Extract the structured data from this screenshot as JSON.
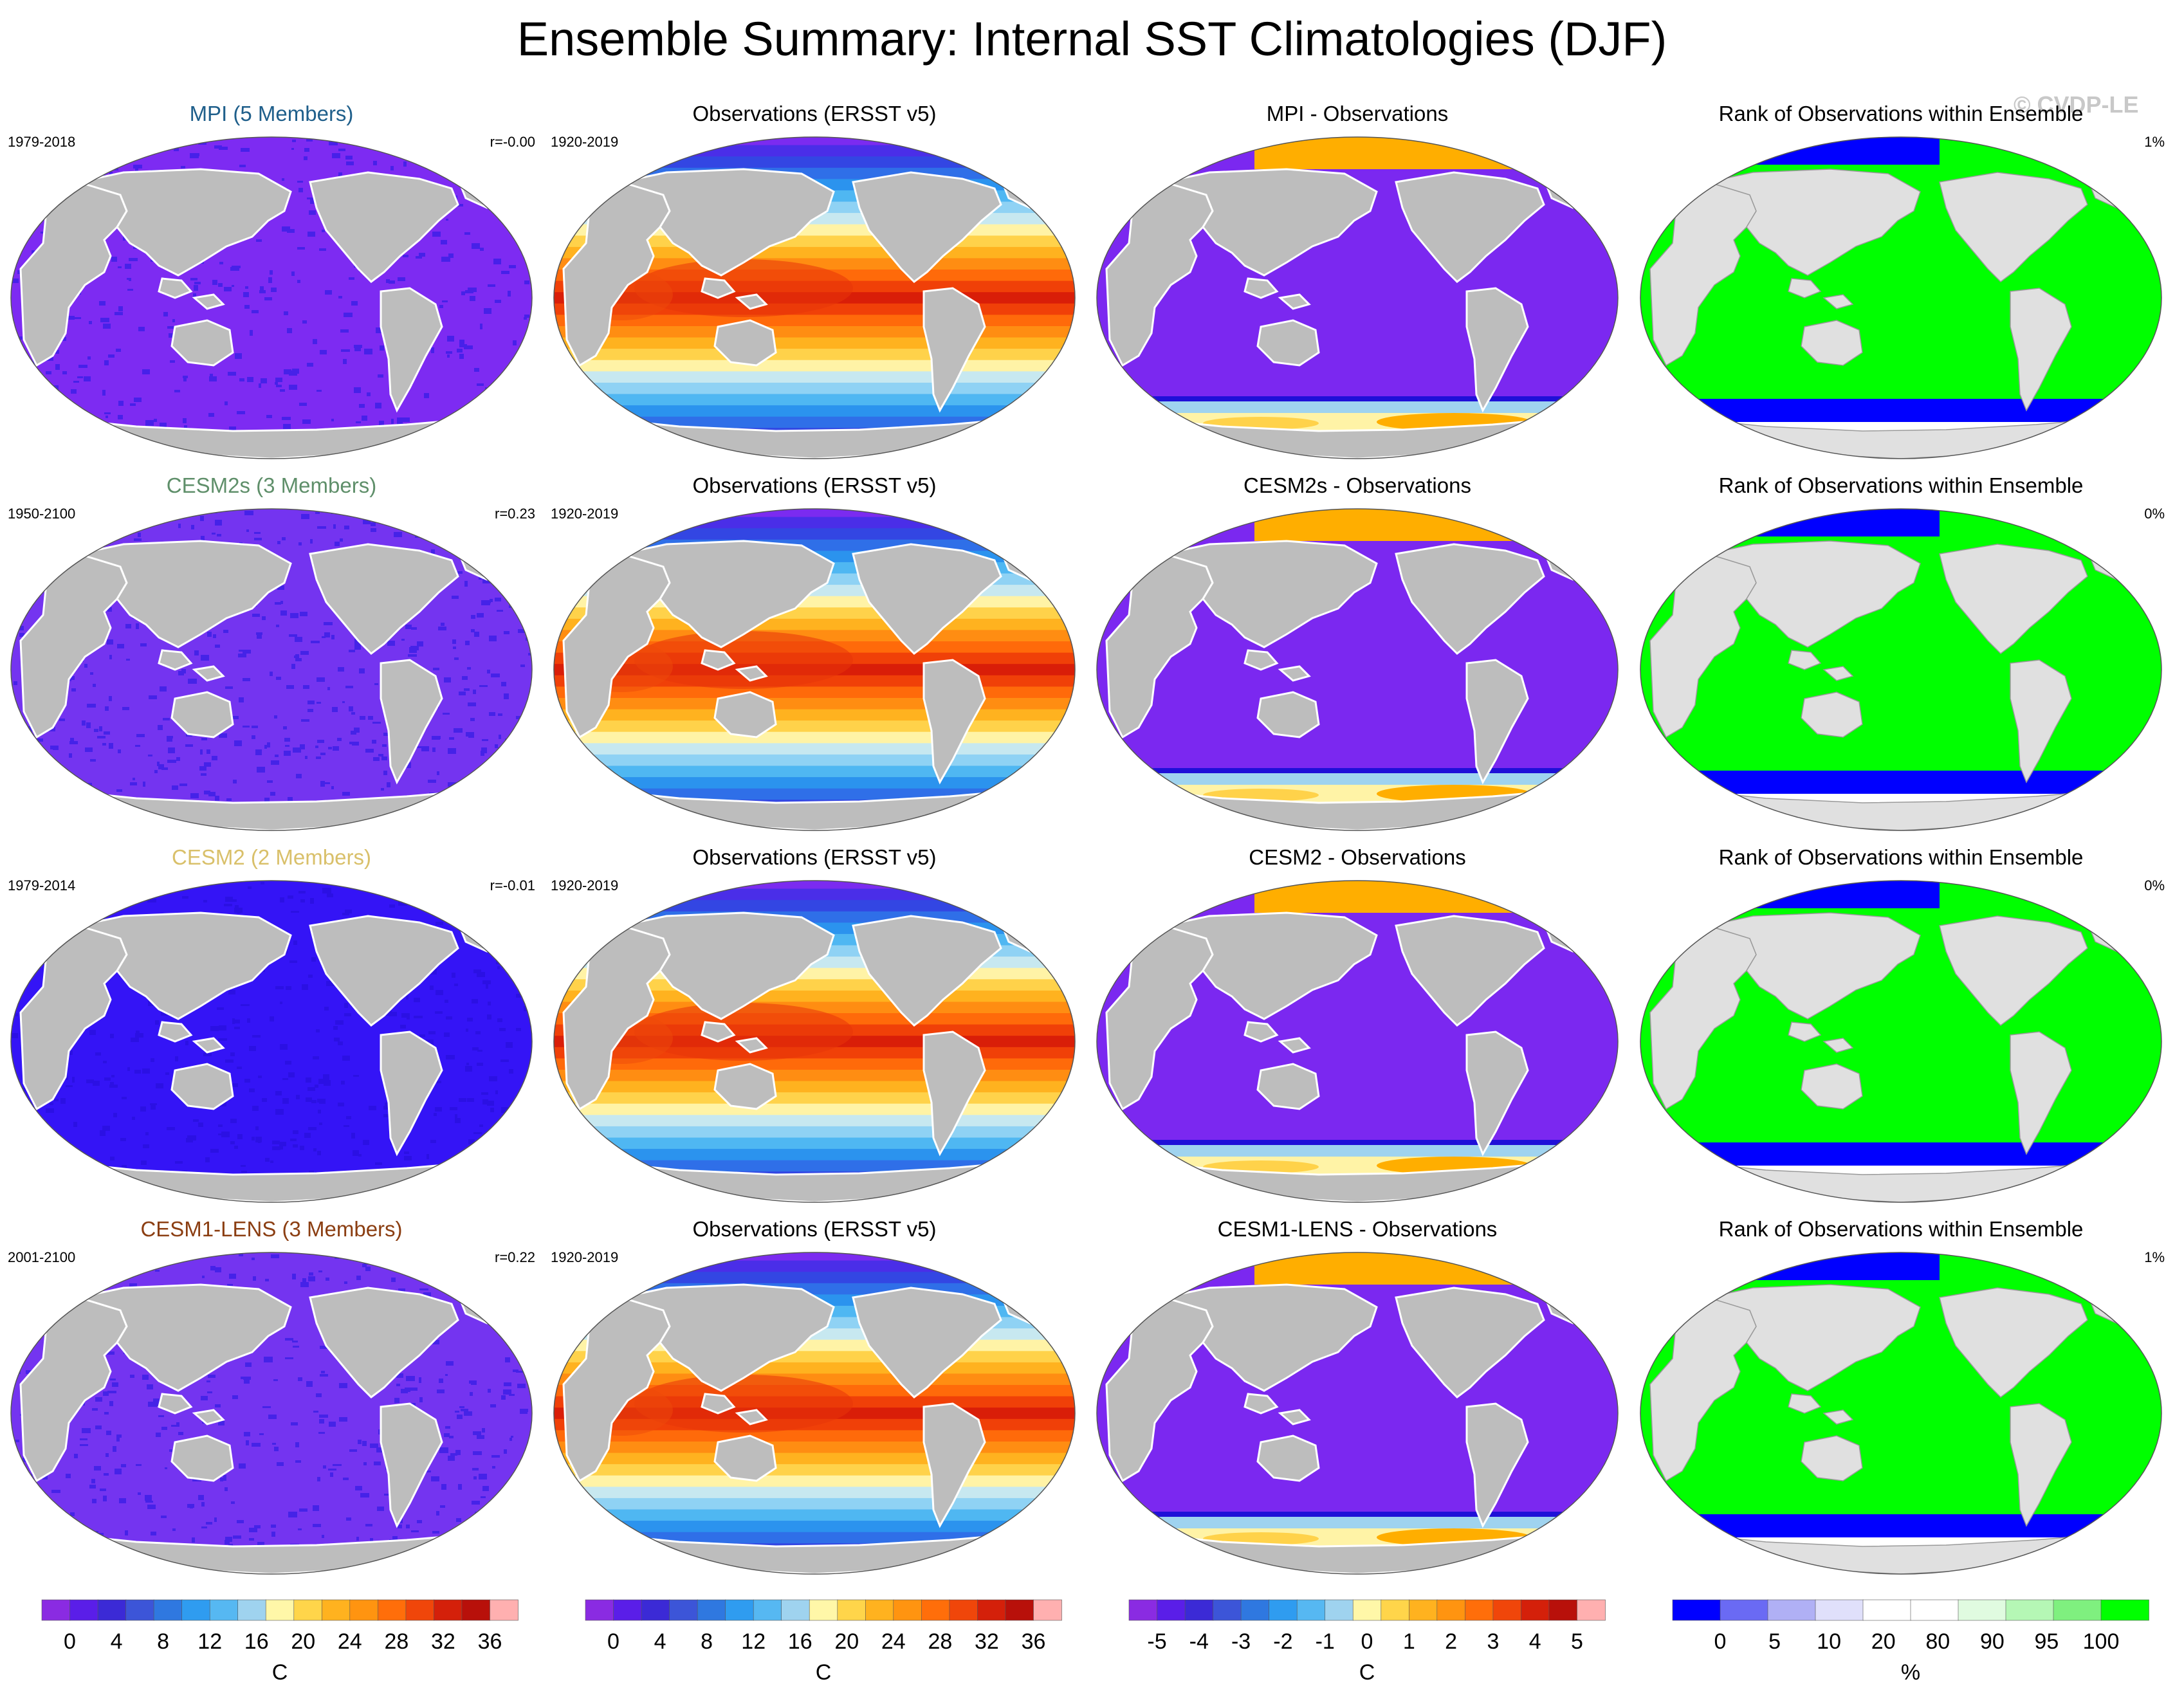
{
  "title": "Ensemble Summary: Internal SST Climatologies (DJF)",
  "watermark": "© CVDP-LE",
  "rows": [
    {
      "model": {
        "title": "MPI (5 Members)",
        "title_color": "#1f5f8b",
        "years": "1979-2018",
        "r": "r=-0.00",
        "fill": "#7d2bf2"
      },
      "obs": {
        "title": "Observations (ERSST v5)",
        "years": "1920-2019"
      },
      "diff": {
        "title": "MPI - Observations"
      },
      "rank": {
        "title": "Rank of Observations within Ensemble",
        "value": "1%"
      }
    },
    {
      "model": {
        "title": "CESM2s (3 Members)",
        "title_color": "#5f8f6a",
        "years": "1950-2100",
        "r": "r=0.23",
        "fill": "#7434f0"
      },
      "obs": {
        "title": "Observations (ERSST v5)",
        "years": "1920-2019"
      },
      "diff": {
        "title": "CESM2s - Observations"
      },
      "rank": {
        "title": "Rank of Observations within Ensemble",
        "value": "0%"
      }
    },
    {
      "model": {
        "title": "CESM2 (2 Members)",
        "title_color": "#d9c06a",
        "years": "1979-2014",
        "r": "r=-0.01",
        "fill": "#3414f6"
      },
      "obs": {
        "title": "Observations (ERSST v5)",
        "years": "1920-2019"
      },
      "diff": {
        "title": "CESM2 - Observations"
      },
      "rank": {
        "title": "Rank of Observations within Ensemble",
        "value": "0%"
      }
    },
    {
      "model": {
        "title": "CESM1-LENS (3 Members)",
        "title_color": "#8b3e12",
        "years": "2001-2100",
        "r": "r=0.22",
        "fill": "#7434f0"
      },
      "obs": {
        "title": "Observations (ERSST v5)",
        "years": "1920-2019"
      },
      "diff": {
        "title": "CESM1-LENS - Observations"
      },
      "rank": {
        "title": "Rank of Observations within Ensemble",
        "value": "1%"
      }
    }
  ],
  "colors": {
    "land": "#bdbdbd",
    "land_rank": "#e0e0e0",
    "diff_ocean": "#7b28f0",
    "diff_arctic": "#ffae00",
    "rank_ocean": "#00ff00",
    "rank_polar": "#0000ff",
    "sst_bands": [
      "#7b2bf0",
      "#4a2ee8",
      "#3346e3",
      "#2f6fe8",
      "#2b93ee",
      "#4fb7f2",
      "#8fd2f4",
      "#c7e8f0",
      "#fff3a6",
      "#ffd24a",
      "#ffb21f",
      "#ff8d12",
      "#ff6a0a",
      "#f04008",
      "#d91e08"
    ]
  },
  "colorbars": [
    {
      "colors": [
        "#8a2be2",
        "#5a1ee8",
        "#3b2ad6",
        "#3c55d8",
        "#2f78e0",
        "#2f9cf0",
        "#56b8f2",
        "#9fd3ef",
        "#fff7a8",
        "#ffd54a",
        "#ffb21f",
        "#ff9410",
        "#ff6e0a",
        "#f0460a",
        "#d4200a",
        "#b8100a",
        "#ffb0b0"
      ],
      "labels": [
        "0",
        "4",
        "8",
        "12",
        "16",
        "20",
        "24",
        "28",
        "32",
        "36"
      ],
      "unit": "C"
    },
    {
      "colors": [
        "#8a2be2",
        "#5a1ee8",
        "#3b2ad6",
        "#3c55d8",
        "#2f78e0",
        "#2f9cf0",
        "#56b8f2",
        "#9fd3ef",
        "#fff7a8",
        "#ffd54a",
        "#ffb21f",
        "#ff9410",
        "#ff6e0a",
        "#f0460a",
        "#d4200a",
        "#b8100a",
        "#ffb0b0"
      ],
      "labels": [
        "0",
        "4",
        "8",
        "12",
        "16",
        "20",
        "24",
        "28",
        "32",
        "36"
      ],
      "unit": "C"
    },
    {
      "colors": [
        "#8a2be2",
        "#5a1ee8",
        "#3b2ad6",
        "#3c55d8",
        "#2f78e0",
        "#2f9cf0",
        "#56b8f2",
        "#9fd3ef",
        "#fff7a8",
        "#ffd54a",
        "#ffb21f",
        "#ff9410",
        "#ff6e0a",
        "#f0460a",
        "#d4200a",
        "#b8100a",
        "#ffb0b0"
      ],
      "labels": [
        "-5",
        "-4",
        "-3",
        "-2",
        "-1",
        "0",
        "1",
        "2",
        "3",
        "4",
        "5"
      ],
      "unit": "C"
    },
    {
      "colors": [
        "#0000ff",
        "#6a6af4",
        "#b0b0f5",
        "#e0e0fb",
        "#ffffff",
        "#ffffff",
        "#e0fbe0",
        "#b5f7b5",
        "#7ff07f",
        "#00ff00"
      ],
      "labels": [
        "0",
        "5",
        "10",
        "20",
        "80",
        "90",
        "95",
        "100"
      ],
      "unit": "%"
    }
  ]
}
